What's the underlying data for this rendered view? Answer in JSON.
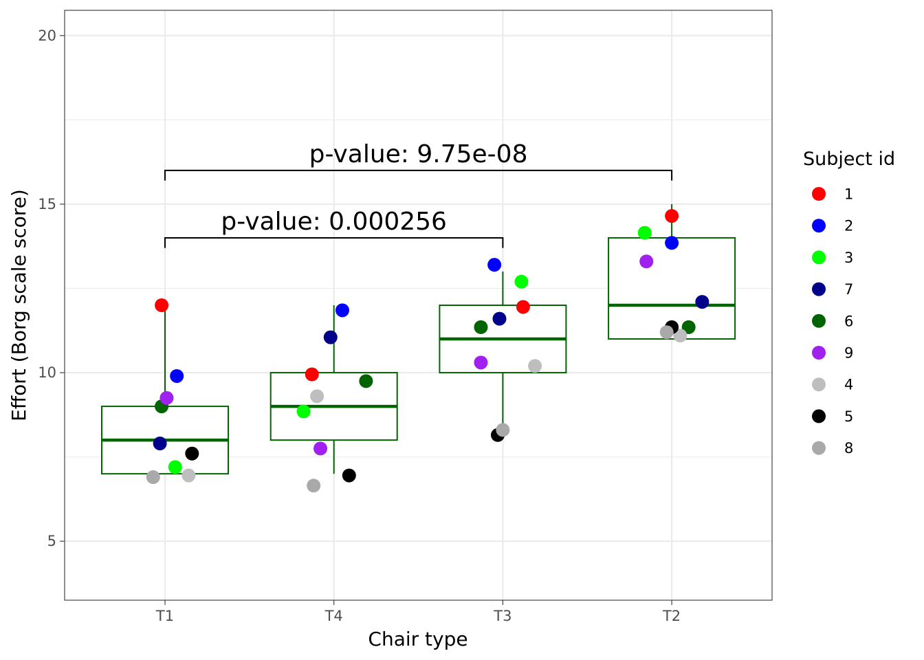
{
  "chart_data": {
    "type": "box",
    "xlabel": "Chair type",
    "ylabel": "Effort (Borg scale score)",
    "categories": [
      "T1",
      "T4",
      "T3",
      "T2"
    ],
    "ylim": [
      3.25,
      20.75
    ],
    "yticks": [
      5,
      10,
      15,
      20
    ],
    "grid": true,
    "box_color": "#006400",
    "boxes": [
      {
        "category": "T1",
        "min": 7,
        "q1": 7,
        "median": 8,
        "q3": 9,
        "max": 12
      },
      {
        "category": "T4",
        "min": 7,
        "q1": 8,
        "median": 9,
        "q3": 10,
        "max": 12
      },
      {
        "category": "T3",
        "min": 8.3,
        "q1": 10,
        "median": 11,
        "q3": 12,
        "max": 13
      },
      {
        "category": "T2",
        "min": 11,
        "q1": 11,
        "median": 12,
        "q3": 14,
        "max": 15
      }
    ],
    "legend": {
      "title": "Subject id",
      "placement": "right",
      "items": [
        {
          "label": "1",
          "color": "#ff0000"
        },
        {
          "label": "2",
          "color": "#0000ff"
        },
        {
          "label": "3",
          "color": "#00ff00"
        },
        {
          "label": "7",
          "color": "#00008b"
        },
        {
          "label": "6",
          "color": "#006400"
        },
        {
          "label": "9",
          "color": "#a020f0"
        },
        {
          "label": "4",
          "color": "#bebebe"
        },
        {
          "label": "5",
          "color": "#000000"
        },
        {
          "label": "8",
          "color": "#a9a9a9"
        }
      ]
    },
    "points": [
      {
        "subject": "1",
        "category": "T1",
        "x": 0.98,
        "y": 12.0
      },
      {
        "subject": "2",
        "category": "T1",
        "x": 1.07,
        "y": 9.9
      },
      {
        "subject": "3",
        "category": "T1",
        "x": 1.06,
        "y": 7.2
      },
      {
        "subject": "7",
        "category": "T1",
        "x": 0.97,
        "y": 7.9
      },
      {
        "subject": "6",
        "category": "T1",
        "x": 0.98,
        "y": 9.0
      },
      {
        "subject": "9",
        "category": "T1",
        "x": 1.01,
        "y": 9.25
      },
      {
        "subject": "4",
        "category": "T1",
        "x": 1.14,
        "y": 6.95
      },
      {
        "subject": "5",
        "category": "T1",
        "x": 1.16,
        "y": 7.6
      },
      {
        "subject": "8",
        "category": "T1",
        "x": 0.93,
        "y": 6.9
      },
      {
        "subject": "1",
        "category": "T4",
        "x": 1.87,
        "y": 9.95
      },
      {
        "subject": "2",
        "category": "T4",
        "x": 2.05,
        "y": 11.85
      },
      {
        "subject": "3",
        "category": "T4",
        "x": 1.82,
        "y": 8.85
      },
      {
        "subject": "7",
        "category": "T4",
        "x": 1.98,
        "y": 11.05
      },
      {
        "subject": "6",
        "category": "T4",
        "x": 2.19,
        "y": 9.75
      },
      {
        "subject": "9",
        "category": "T4",
        "x": 1.92,
        "y": 7.75
      },
      {
        "subject": "4",
        "category": "T4",
        "x": 1.9,
        "y": 9.3
      },
      {
        "subject": "5",
        "category": "T4",
        "x": 2.09,
        "y": 6.95
      },
      {
        "subject": "8",
        "category": "T4",
        "x": 1.88,
        "y": 6.65
      },
      {
        "subject": "1",
        "category": "T3",
        "x": 3.12,
        "y": 11.95
      },
      {
        "subject": "2",
        "category": "T3",
        "x": 2.95,
        "y": 13.2
      },
      {
        "subject": "3",
        "category": "T3",
        "x": 3.11,
        "y": 12.7
      },
      {
        "subject": "7",
        "category": "T3",
        "x": 2.98,
        "y": 11.6
      },
      {
        "subject": "6",
        "category": "T3",
        "x": 2.87,
        "y": 11.35
      },
      {
        "subject": "9",
        "category": "T3",
        "x": 2.87,
        "y": 10.3
      },
      {
        "subject": "4",
        "category": "T3",
        "x": 3.19,
        "y": 10.2
      },
      {
        "subject": "5",
        "category": "T3",
        "x": 2.97,
        "y": 8.15
      },
      {
        "subject": "8",
        "category": "T3",
        "x": 3.0,
        "y": 8.3
      },
      {
        "subject": "1",
        "category": "T2",
        "x": 4.0,
        "y": 14.65
      },
      {
        "subject": "2",
        "category": "T2",
        "x": 4.0,
        "y": 13.85
      },
      {
        "subject": "3",
        "category": "T2",
        "x": 3.84,
        "y": 14.15
      },
      {
        "subject": "7",
        "category": "T2",
        "x": 4.18,
        "y": 12.1
      },
      {
        "subject": "6",
        "category": "T2",
        "x": 4.1,
        "y": 11.35
      },
      {
        "subject": "9",
        "category": "T2",
        "x": 3.85,
        "y": 13.3
      },
      {
        "subject": "4",
        "category": "T2",
        "x": 4.05,
        "y": 11.1
      },
      {
        "subject": "5",
        "category": "T2",
        "x": 4.0,
        "y": 11.35
      },
      {
        "subject": "8",
        "category": "T2",
        "x": 3.97,
        "y": 11.2
      }
    ],
    "annotations": [
      {
        "label": "p-value: 9.75e-08",
        "from": "T1",
        "to": "T2",
        "y": 16,
        "drop_to": 15.7
      },
      {
        "label": "p-value: 0.000256",
        "from": "T1",
        "to": "T3",
        "y": 14,
        "drop_to": 13.7
      }
    ]
  }
}
